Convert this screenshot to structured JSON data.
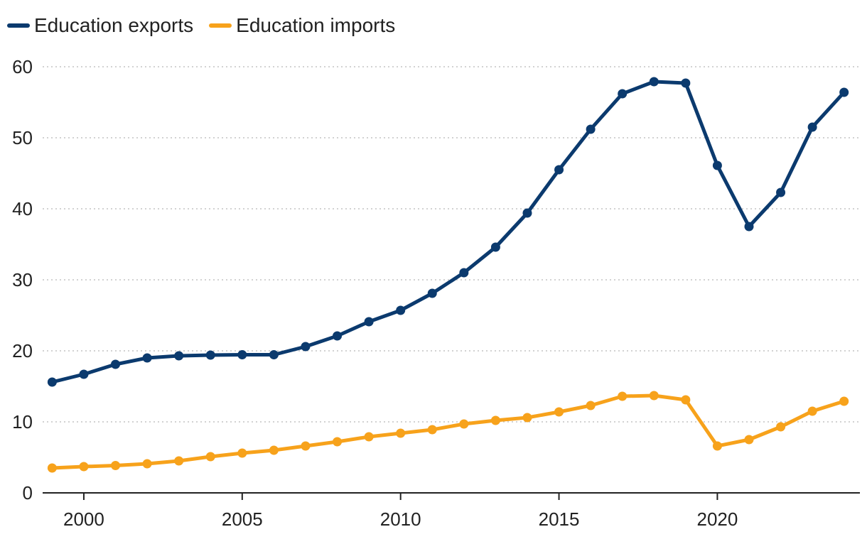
{
  "chart_data": {
    "type": "line",
    "title": "",
    "xlabel": "",
    "ylabel": "",
    "x": [
      1999,
      2000,
      2001,
      2002,
      2003,
      2004,
      2005,
      2006,
      2007,
      2008,
      2009,
      2010,
      2011,
      2012,
      2013,
      2014,
      2015,
      2016,
      2017,
      2018,
      2019,
      2020,
      2021,
      2022,
      2023,
      2024
    ],
    "xlim": [
      1998.7,
      2024.5
    ],
    "ylim": [
      0,
      60
    ],
    "x_ticks": [
      2000,
      2005,
      2010,
      2015,
      2020
    ],
    "y_ticks": [
      0,
      10,
      20,
      30,
      40,
      50,
      60
    ],
    "grid": "horizontal dotted",
    "legend_position": "top-left",
    "series": [
      {
        "name": "Education exports",
        "color": "#0b3a6e",
        "values": [
          15.6,
          16.7,
          18.1,
          19.0,
          19.3,
          19.4,
          19.45,
          19.45,
          20.6,
          22.1,
          24.1,
          25.7,
          28.1,
          31.0,
          34.6,
          39.4,
          45.5,
          51.2,
          56.2,
          57.9,
          57.7,
          46.1,
          37.5,
          42.3,
          51.5,
          56.4
        ]
      },
      {
        "name": "Education imports",
        "color": "#f7a21b",
        "values": [
          3.5,
          3.7,
          3.85,
          4.1,
          4.5,
          5.1,
          5.6,
          6.0,
          6.6,
          7.2,
          7.9,
          8.4,
          8.9,
          9.7,
          10.2,
          10.6,
          11.4,
          12.3,
          13.6,
          13.7,
          13.1,
          6.6,
          7.5,
          9.3,
          11.5,
          12.9
        ]
      }
    ]
  }
}
